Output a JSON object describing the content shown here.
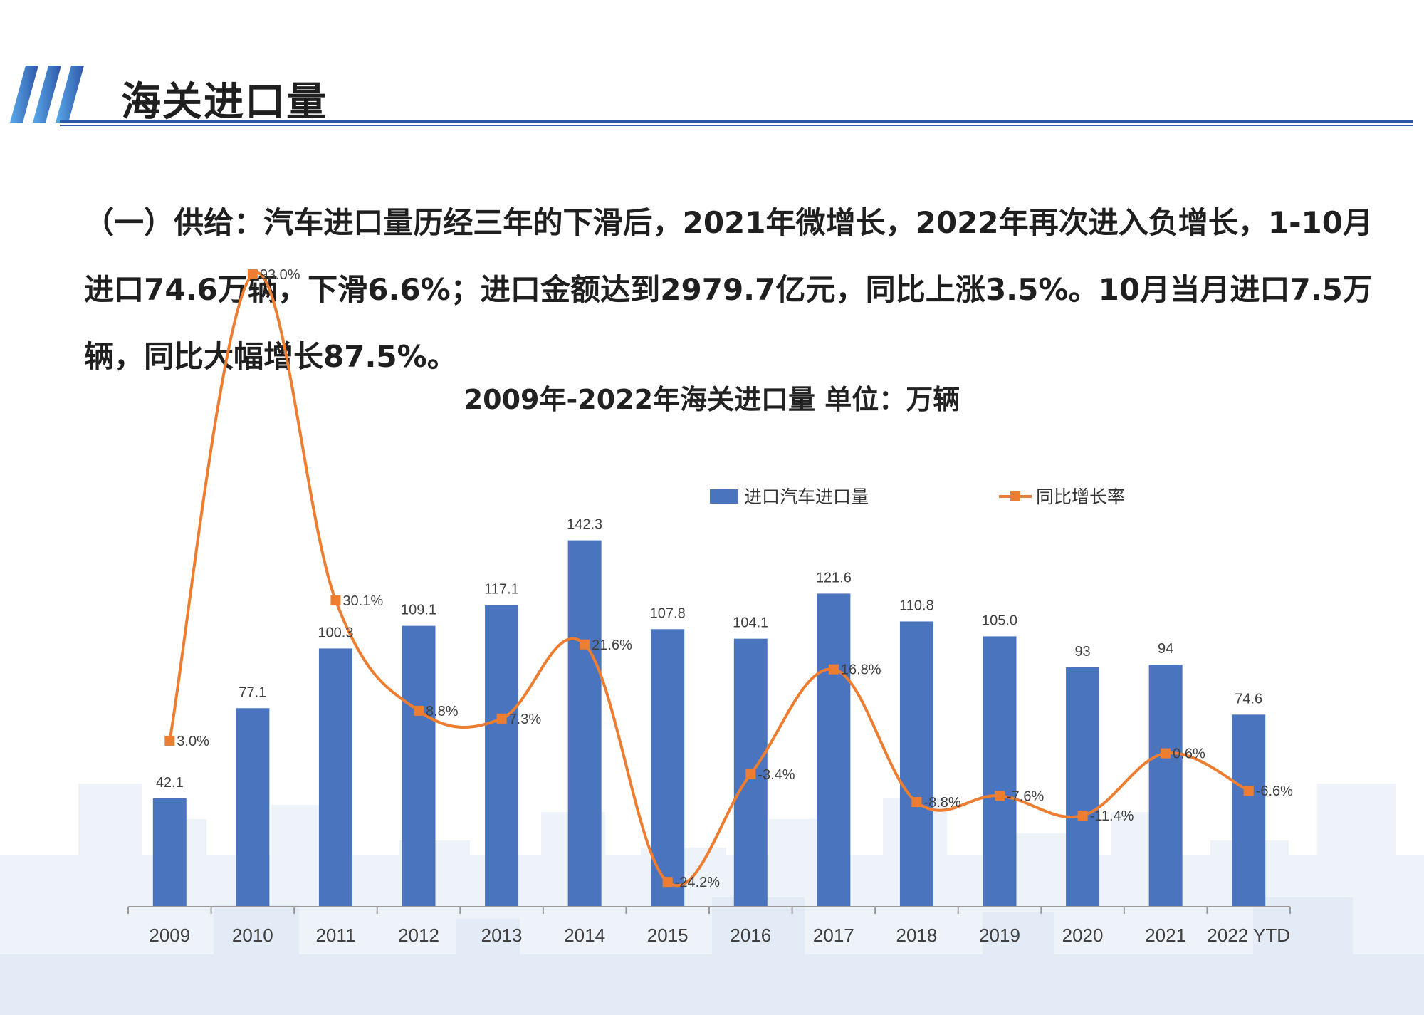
{
  "header": {
    "title": "海关进口量"
  },
  "paragraph": "（一）供给：汽车进口量历经三年的下滑后，2021年微增长，2022年再次进入负增长，1-10月进口74.6万辆，下滑6.6%；进口金额达到2979.7亿元，同比上涨3.5%。10月当月进口7.5万辆，同比大幅增长87.5%。",
  "colors": {
    "bar": "#4a74bd",
    "line": "#ed7d31",
    "accent_blue": "#2f57a8"
  },
  "chart_data": {
    "type": "bar+line",
    "title": "2009年-2022年海关进口量 单位：万辆",
    "categories": [
      "2009",
      "2010",
      "2011",
      "2012",
      "2013",
      "2014",
      "2015",
      "2016",
      "2017",
      "2018",
      "2019",
      "2020",
      "2021",
      "2022 YTD"
    ],
    "series": [
      {
        "name": "进口汽车进口量",
        "type": "bar",
        "values": [
          42.1,
          77.1,
          100.3,
          109.1,
          117.1,
          142.3,
          107.8,
          104.1,
          121.6,
          110.8,
          105.0,
          93,
          94,
          74.6
        ],
        "labels": [
          "42.1",
          "77.1",
          "100.3",
          "109.1",
          "117.1",
          "142.3",
          "107.8",
          "104.1",
          "121.6",
          "110.8",
          "105.0",
          "93",
          "94",
          "74.6"
        ]
      },
      {
        "name": "同比增长率",
        "type": "line",
        "values": [
          3.0,
          93.0,
          30.1,
          8.8,
          7.3,
          21.6,
          -24.2,
          -3.4,
          16.8,
          -8.8,
          -7.6,
          -11.4,
          0.6,
          -6.6
        ],
        "labels": [
          "3.0%",
          "93.0%",
          "30.1%",
          "8.8%",
          "7.3%",
          "21.6%",
          "-24.2%",
          "-3.4%",
          "16.8%",
          "-8.8%",
          "-7.6%",
          "-11.4%",
          "0.6%",
          "-6.6%"
        ]
      }
    ],
    "legend_position": "top",
    "grid": false
  }
}
